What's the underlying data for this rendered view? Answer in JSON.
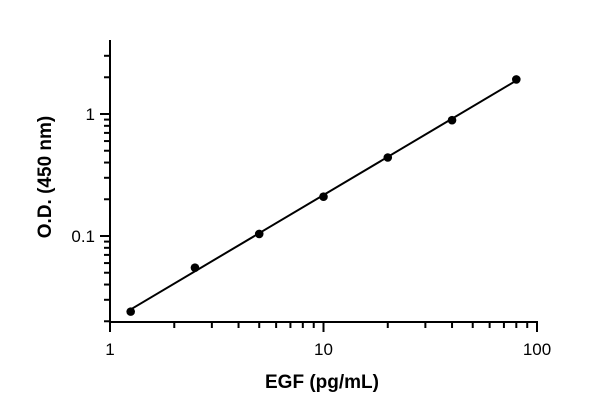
{
  "chart_data": {
    "type": "scatter",
    "title": "",
    "xlabel": "EGF (pg/mL)",
    "ylabel": "O.D. (450 nm)",
    "xscale": "log",
    "yscale": "log",
    "xlim": [
      1,
      100
    ],
    "ylim": [
      0.02,
      3.5
    ],
    "x_ticks": [
      {
        "value": 1,
        "label": "1"
      },
      {
        "value": 10,
        "label": "10"
      },
      {
        "value": 100,
        "label": "100"
      }
    ],
    "y_ticks": [
      {
        "value": 0.1,
        "label": "0.1"
      },
      {
        "value": 1,
        "label": "1"
      }
    ],
    "grid": false,
    "legend": "none",
    "series": [
      {
        "x": [
          1.25,
          2.5,
          5,
          10,
          20,
          40,
          80
        ],
        "y": [
          0.024,
          0.055,
          0.104,
          0.21,
          0.44,
          0.89,
          1.92
        ]
      }
    ],
    "fit_line": {
      "x": [
        1.25,
        80
      ],
      "y": [
        0.025,
        1.88
      ]
    },
    "colors": {
      "marker": "#000000",
      "line": "#000000",
      "axis": "#000000"
    }
  }
}
